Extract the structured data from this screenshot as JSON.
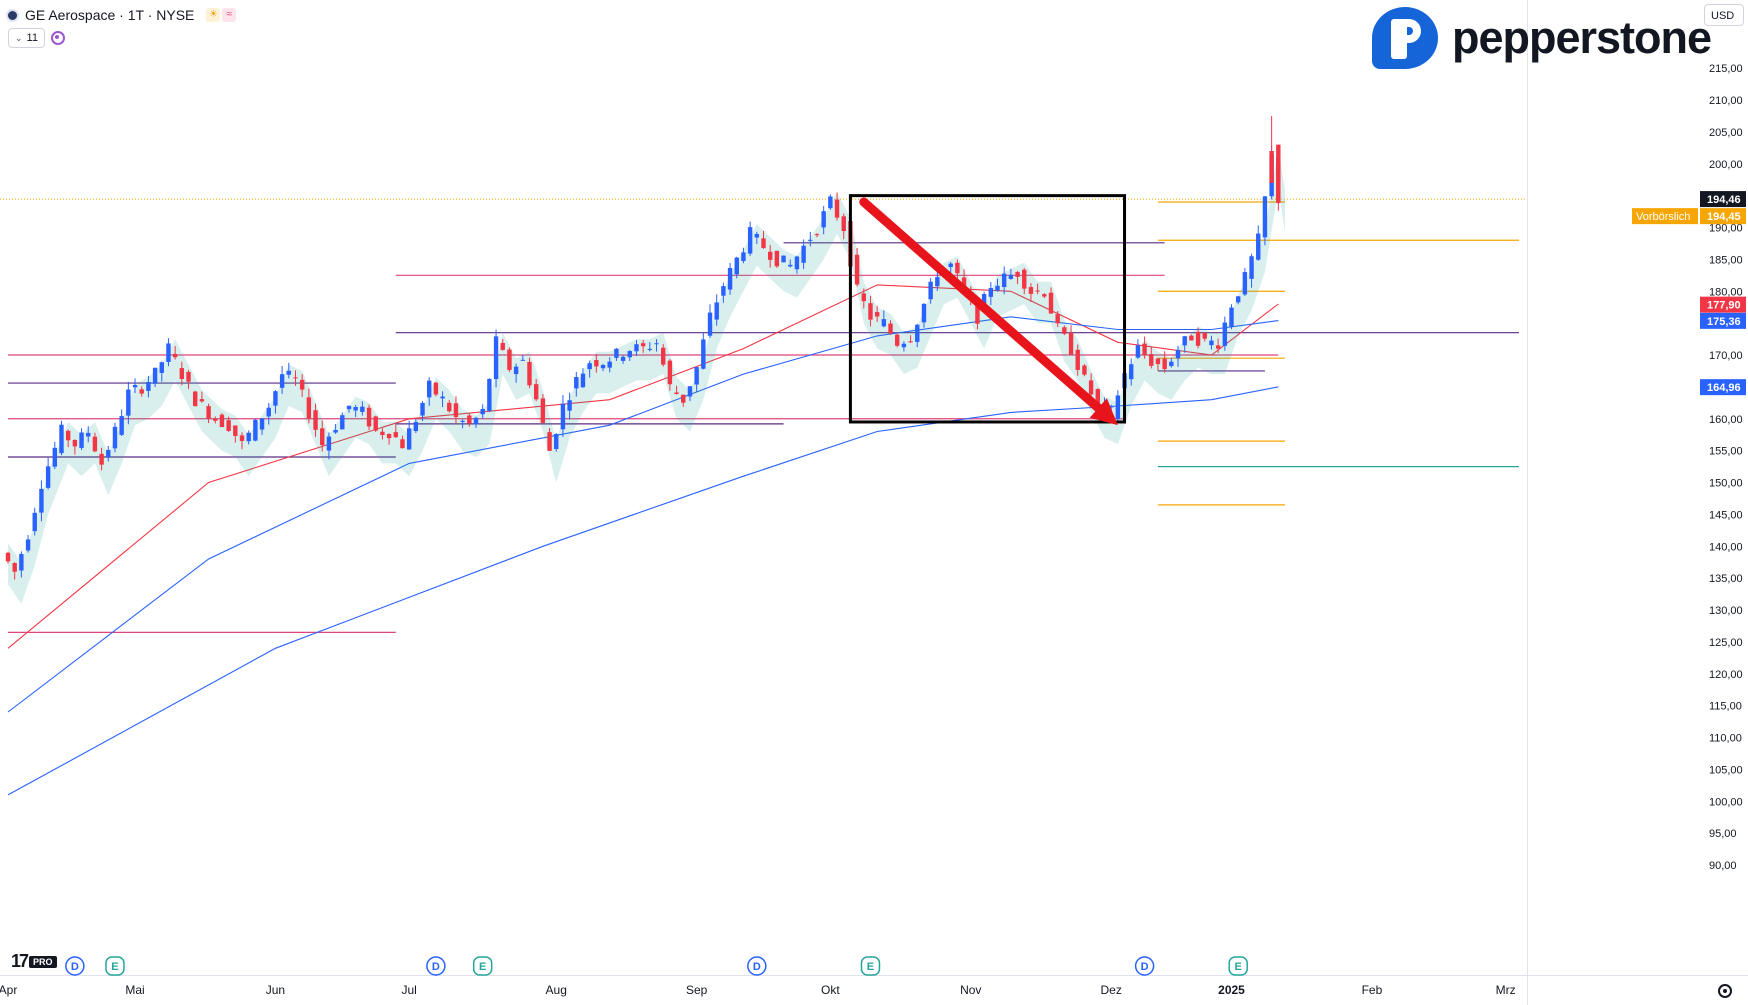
{
  "header": {
    "title": "GE Aerospace · 1T · NYSE",
    "indicator_count": "11"
  },
  "brand": {
    "name": "pepperstone"
  },
  "currency_button": "USD",
  "tradingview": {
    "logo": "17",
    "badge": "PRO"
  },
  "icons": {
    "symbol": "ge-logo-icon",
    "session": "sun-icon",
    "indicator": "wave-icon",
    "sync": "sync-icon",
    "settings": "gear-icon"
  },
  "colors": {
    "up": "#2962ff",
    "down": "#f23645",
    "ema_fast": "#f23645",
    "ema_mid": "#2962ff",
    "ema_slow": "#2962ff",
    "ribbon_bull": "#26a69a",
    "ribbon_bear": "#a85a5a",
    "arrow": "#e8141c",
    "price_line": "#f7a600"
  },
  "chart_data": {
    "type": "candlestick",
    "title": "GE Aerospace · 1T · NYSE",
    "x_axis": {
      "labels": [
        "Apr",
        "Mai",
        "Jun",
        "Jul",
        "Aug",
        "Sep",
        "Okt",
        "Nov",
        "Dez",
        "2025",
        "Feb",
        "Mrz"
      ],
      "bold_labels": [
        "2025"
      ]
    },
    "y_axis": {
      "ylim": [
        87.5,
        218
      ],
      "ticks": [
        "215,00",
        "210,00",
        "205,00",
        "200,00",
        "195,00",
        "190,00",
        "185,00",
        "180,00",
        "175,00",
        "170,00",
        "165,00",
        "160,00",
        "155,00",
        "150,00",
        "145,00",
        "140,00",
        "135,00",
        "130,00",
        "125,00",
        "120,00",
        "115,00",
        "110,00",
        "105,00",
        "100,00",
        "95,00",
        "90,00"
      ],
      "tick_values": [
        215,
        210,
        205,
        200,
        195,
        190,
        185,
        180,
        175,
        170,
        165,
        160,
        155,
        150,
        145,
        140,
        135,
        130,
        125,
        120,
        115,
        110,
        105,
        100,
        95,
        90
      ],
      "price_labels": [
        {
          "value": 194.46,
          "text": "194,46",
          "bg": "#131722",
          "fg": "#ffffff"
        },
        {
          "value": 194.45,
          "text": "194,45",
          "bg": "#f7a600",
          "fg": "#ffffff"
        },
        {
          "value": 177.9,
          "text": "177,90",
          "bg": "#f23645",
          "fg": "#ffffff"
        },
        {
          "value": 175.36,
          "text": "175,36",
          "bg": "#2962ff",
          "fg": "#ffffff"
        },
        {
          "value": 164.96,
          "text": "164,96",
          "bg": "#2962ff",
          "fg": "#ffffff"
        }
      ],
      "premarket": {
        "text": "Vorbörslich",
        "value": 194.45
      }
    },
    "candles_path": [
      [
        0,
        139
      ],
      [
        2,
        136
      ],
      [
        4,
        142
      ],
      [
        6,
        150
      ],
      [
        9,
        158
      ],
      [
        11,
        156
      ],
      [
        13,
        158
      ],
      [
        15,
        153
      ],
      [
        17,
        158
      ],
      [
        19,
        164
      ],
      [
        21,
        165
      ],
      [
        23,
        167
      ],
      [
        25,
        171
      ],
      [
        27,
        167
      ],
      [
        29,
        163
      ],
      [
        32,
        160
      ],
      [
        34,
        159
      ],
      [
        36,
        156
      ],
      [
        38,
        159
      ],
      [
        40,
        162
      ],
      [
        42,
        167
      ],
      [
        44,
        166
      ],
      [
        46,
        161
      ],
      [
        48,
        156
      ],
      [
        50,
        159
      ],
      [
        52,
        162
      ],
      [
        54,
        161
      ],
      [
        56,
        158
      ],
      [
        58,
        158
      ],
      [
        60,
        156
      ],
      [
        62,
        160
      ],
      [
        64,
        165
      ],
      [
        66,
        163
      ],
      [
        68,
        160
      ],
      [
        70,
        159
      ],
      [
        72,
        161
      ],
      [
        74,
        172
      ],
      [
        76,
        168
      ],
      [
        78,
        169
      ],
      [
        80,
        163
      ],
      [
        82,
        155
      ],
      [
        84,
        162
      ],
      [
        86,
        166
      ],
      [
        88,
        169
      ],
      [
        90,
        169
      ],
      [
        92,
        170
      ],
      [
        94,
        171
      ],
      [
        96,
        171
      ],
      [
        98,
        172
      ],
      [
        100,
        165
      ],
      [
        102,
        163
      ],
      [
        104,
        168
      ],
      [
        106,
        176
      ],
      [
        108,
        181
      ],
      [
        110,
        185
      ],
      [
        112,
        189
      ],
      [
        114,
        187
      ],
      [
        116,
        185
      ],
      [
        118,
        184
      ],
      [
        120,
        187
      ],
      [
        122,
        190
      ],
      [
        124,
        194
      ],
      [
        126,
        190
      ],
      [
        128,
        180
      ],
      [
        130,
        176
      ],
      [
        132,
        175
      ],
      [
        134,
        172
      ],
      [
        136,
        173
      ],
      [
        138,
        178
      ],
      [
        140,
        183
      ],
      [
        142,
        184
      ],
      [
        144,
        180
      ],
      [
        146,
        176
      ],
      [
        148,
        181
      ],
      [
        150,
        182
      ],
      [
        152,
        183
      ],
      [
        154,
        180
      ],
      [
        156,
        180
      ],
      [
        158,
        174
      ],
      [
        160,
        171
      ],
      [
        162,
        166
      ],
      [
        164,
        162
      ],
      [
        166,
        161
      ],
      [
        168,
        167
      ],
      [
        170,
        171
      ],
      [
        172,
        169
      ],
      [
        174,
        168
      ],
      [
        176,
        171
      ],
      [
        178,
        173
      ],
      [
        180,
        172
      ],
      [
        182,
        172
      ],
      [
        184,
        178
      ],
      [
        186,
        182
      ],
      [
        188,
        188
      ],
      [
        190,
        201
      ],
      [
        191,
        194.46
      ]
    ],
    "last_close": 194.46,
    "prior_high": 207.5,
    "moving_averages": [
      {
        "color": "#f23645",
        "points": [
          [
            0,
            124
          ],
          [
            30,
            150
          ],
          [
            60,
            160
          ],
          [
            90,
            163
          ],
          [
            110,
            171
          ],
          [
            130,
            181
          ],
          [
            150,
            180
          ],
          [
            166,
            172
          ],
          [
            180,
            170
          ],
          [
            190,
            178
          ]
        ]
      },
      {
        "color": "#2962ff",
        "points": [
          [
            0,
            114
          ],
          [
            30,
            138
          ],
          [
            60,
            153
          ],
          [
            90,
            159
          ],
          [
            110,
            167
          ],
          [
            130,
            173
          ],
          [
            150,
            176
          ],
          [
            166,
            174
          ],
          [
            180,
            174
          ],
          [
            190,
            175.4
          ]
        ]
      },
      {
        "color": "#2962ff",
        "points": [
          [
            0,
            101
          ],
          [
            40,
            124
          ],
          [
            80,
            140
          ],
          [
            110,
            151
          ],
          [
            130,
            158
          ],
          [
            150,
            161
          ],
          [
            166,
            162
          ],
          [
            180,
            163
          ],
          [
            190,
            165
          ]
        ]
      }
    ],
    "arrow": {
      "from": [
        128,
        194
      ],
      "to": [
        166,
        159
      ]
    },
    "box": {
      "x": [
        126,
        167
      ],
      "y": [
        159.5,
        195
      ]
    },
    "horizontal_levels": [
      {
        "value": 170.0,
        "color": "#e0457b",
        "x": [
          0,
          190
        ]
      },
      {
        "value": 160.0,
        "color": "#e0457b",
        "x": [
          0,
          167
        ]
      },
      {
        "value": 182.5,
        "color": "#e0457b",
        "x": [
          58,
          173
        ]
      },
      {
        "value": 126.5,
        "color": "#e0457b",
        "x": [
          0,
          58
        ]
      },
      {
        "value": 173.5,
        "color": "#5b2a86",
        "x": [
          58,
          226
        ]
      },
      {
        "value": 165.6,
        "color": "#5b2a86",
        "x": [
          0,
          58
        ]
      },
      {
        "value": 154.0,
        "color": "#5b2a86",
        "x": [
          0,
          58
        ]
      },
      {
        "value": 159.2,
        "color": "#5b2a86",
        "x": [
          58,
          116
        ]
      },
      {
        "value": 187.6,
        "color": "#5b2a86",
        "x": [
          116,
          173
        ]
      },
      {
        "value": 194.0,
        "color": "#f7a600",
        "x": [
          172,
          191
        ]
      },
      {
        "value": 188.0,
        "color": "#f7a600",
        "x": [
          172,
          226
        ]
      },
      {
        "value": 180.0,
        "color": "#f7a600",
        "x": [
          172,
          191
        ]
      },
      {
        "value": 169.5,
        "color": "#f7a600",
        "x": [
          172,
          191
        ]
      },
      {
        "value": 156.5,
        "color": "#f7a600",
        "x": [
          172,
          191
        ]
      },
      {
        "value": 152.5,
        "color": "#26a69a",
        "x": [
          172,
          226
        ]
      },
      {
        "value": 146.5,
        "color": "#f7a600",
        "x": [
          172,
          191
        ]
      },
      {
        "value": 167.5,
        "color": "#5b2a86",
        "x": [
          172,
          188
        ]
      }
    ],
    "event_markers": [
      {
        "label": "D",
        "x": 10,
        "color": "#2962ff"
      },
      {
        "label": "E",
        "x": 16,
        "color": "#26a69a"
      },
      {
        "label": "D",
        "x": 64,
        "color": "#2962ff"
      },
      {
        "label": "E",
        "x": 71,
        "color": "#26a69a"
      },
      {
        "label": "D",
        "x": 112,
        "color": "#2962ff"
      },
      {
        "label": "E",
        "x": 129,
        "color": "#26a69a"
      },
      {
        "label": "D",
        "x": 170,
        "color": "#2962ff"
      },
      {
        "label": "E",
        "x": 184,
        "color": "#26a69a"
      }
    ]
  }
}
